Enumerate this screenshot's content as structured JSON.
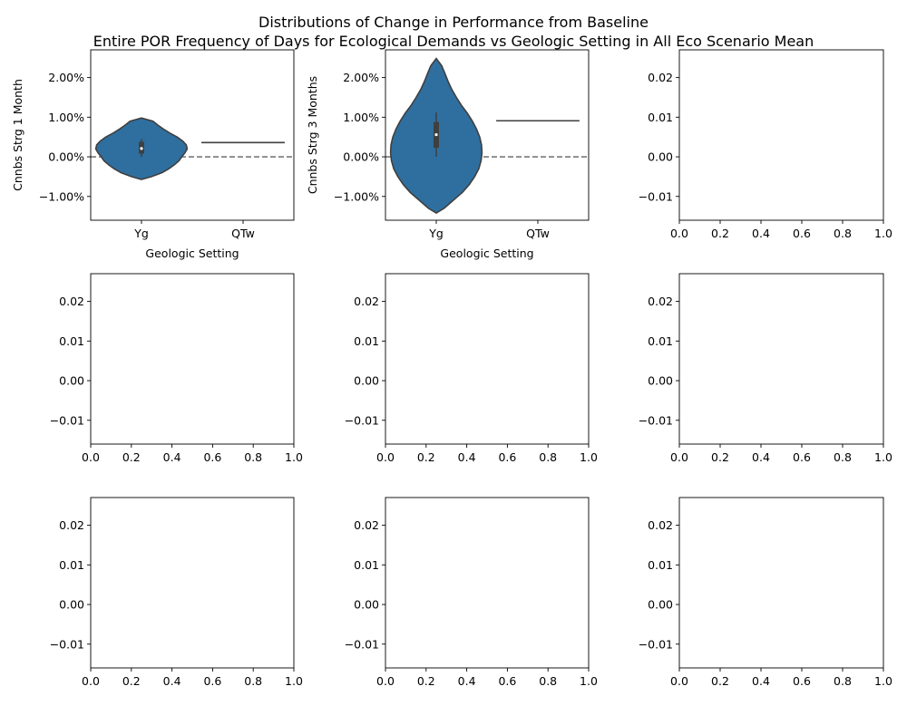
{
  "figure": {
    "title_line1": "Distributions of Change in Performance from Baseline",
    "title_line2": "Entire POR Frequency of Days for Ecological Demands vs Geologic Setting in All Eco Scenario Mean"
  },
  "colors": {
    "violin_fill": "#2f6f9f",
    "violin_edge": "#3f3f3f",
    "box": "#3f3f3f",
    "median": "#ffffff",
    "zero_line": "#7a7a7a",
    "axis": "#000000"
  },
  "chart_data": [
    {
      "type": "violin",
      "title": "",
      "xlabel": "Geologic Setting",
      "ylabel": "Cnnbs Strg 1 Month",
      "categories": [
        "Yg",
        "QTw"
      ],
      "ylim": [
        -0.016,
        0.027
      ],
      "yticks": [
        -0.01,
        0.0,
        0.01,
        0.02
      ],
      "ytick_labels": [
        "−1.00%",
        "0.00%",
        "1.00%",
        "2.00%"
      ],
      "reference_line": 0.0,
      "violins": [
        {
          "category": "Yg",
          "profile": [
            [
              -0.0057,
              0
            ],
            [
              -0.005,
              0.22
            ],
            [
              -0.004,
              0.45
            ],
            [
              -0.003,
              0.6
            ],
            [
              -0.002,
              0.72
            ],
            [
              -0.001,
              0.82
            ],
            [
              0.0,
              0.88
            ],
            [
              0.001,
              0.95
            ],
            [
              0.002,
              1.0
            ],
            [
              0.003,
              0.98
            ],
            [
              0.004,
              0.9
            ],
            [
              0.005,
              0.78
            ],
            [
              0.006,
              0.62
            ],
            [
              0.007,
              0.48
            ],
            [
              0.008,
              0.36
            ],
            [
              0.009,
              0.25
            ],
            [
              0.0098,
              0
            ]
          ],
          "max_half_width": 0.45,
          "q1": 0.0008,
          "median": 0.0021,
          "q3": 0.0038,
          "whisker_low": 0.0,
          "whisker_high": 0.0045
        },
        {
          "category": "QTw",
          "single_value": 0.0036
        }
      ]
    },
    {
      "type": "violin",
      "title": "",
      "xlabel": "Geologic Setting",
      "ylabel": "Cnnbs Strg 3 Months",
      "categories": [
        "Yg",
        "QTw"
      ],
      "ylim": [
        -0.016,
        0.027
      ],
      "yticks": [
        -0.01,
        0.0,
        0.01,
        0.02
      ],
      "ytick_labels": [
        "−1.00%",
        "0.00%",
        "1.00%",
        "2.00%"
      ],
      "reference_line": 0.0,
      "violins": [
        {
          "category": "Yg",
          "profile": [
            [
              -0.0142,
              0
            ],
            [
              -0.013,
              0.17
            ],
            [
              -0.011,
              0.37
            ],
            [
              -0.009,
              0.57
            ],
            [
              -0.007,
              0.72
            ],
            [
              -0.005,
              0.84
            ],
            [
              -0.003,
              0.93
            ],
            [
              -0.001,
              0.98
            ],
            [
              0.001,
              1.0
            ],
            [
              0.003,
              0.99
            ],
            [
              0.005,
              0.95
            ],
            [
              0.007,
              0.88
            ],
            [
              0.009,
              0.79
            ],
            [
              0.011,
              0.68
            ],
            [
              0.013,
              0.55
            ],
            [
              0.015,
              0.44
            ],
            [
              0.017,
              0.34
            ],
            [
              0.019,
              0.26
            ],
            [
              0.021,
              0.19
            ],
            [
              0.023,
              0.12
            ],
            [
              0.0248,
              0
            ]
          ],
          "max_half_width": 0.45,
          "q1": 0.0023,
          "median": 0.0056,
          "q3": 0.0088,
          "whisker_low": 0.0,
          "whisker_high": 0.0112
        },
        {
          "category": "QTw",
          "single_value": 0.0091
        }
      ]
    },
    {
      "type": "empty",
      "xlim": [
        0,
        1
      ],
      "ylim": [
        -0.016,
        0.027
      ],
      "xticks": [
        0.0,
        0.2,
        0.4,
        0.6,
        0.8,
        1.0
      ],
      "xtick_labels": [
        "0.0",
        "0.2",
        "0.4",
        "0.6",
        "0.8",
        "1.0"
      ],
      "yticks": [
        -0.01,
        0.0,
        0.01,
        0.02
      ],
      "ytick_labels": [
        "−0.01",
        "0.00",
        "0.01",
        "0.02"
      ]
    },
    {
      "type": "empty",
      "xlim": [
        0,
        1
      ],
      "ylim": [
        -0.016,
        0.027
      ],
      "xticks": [
        0.0,
        0.2,
        0.4,
        0.6,
        0.8,
        1.0
      ],
      "xtick_labels": [
        "0.0",
        "0.2",
        "0.4",
        "0.6",
        "0.8",
        "1.0"
      ],
      "yticks": [
        -0.01,
        0.0,
        0.01,
        0.02
      ],
      "ytick_labels": [
        "−0.01",
        "0.00",
        "0.01",
        "0.02"
      ]
    },
    {
      "type": "empty",
      "xlim": [
        0,
        1
      ],
      "ylim": [
        -0.016,
        0.027
      ],
      "xticks": [
        0.0,
        0.2,
        0.4,
        0.6,
        0.8,
        1.0
      ],
      "xtick_labels": [
        "0.0",
        "0.2",
        "0.4",
        "0.6",
        "0.8",
        "1.0"
      ],
      "yticks": [
        -0.01,
        0.0,
        0.01,
        0.02
      ],
      "ytick_labels": [
        "−0.01",
        "0.00",
        "0.01",
        "0.02"
      ]
    },
    {
      "type": "empty",
      "xlim": [
        0,
        1
      ],
      "ylim": [
        -0.016,
        0.027
      ],
      "xticks": [
        0.0,
        0.2,
        0.4,
        0.6,
        0.8,
        1.0
      ],
      "xtick_labels": [
        "0.0",
        "0.2",
        "0.4",
        "0.6",
        "0.8",
        "1.0"
      ],
      "yticks": [
        -0.01,
        0.0,
        0.01,
        0.02
      ],
      "ytick_labels": [
        "−0.01",
        "0.00",
        "0.01",
        "0.02"
      ]
    },
    {
      "type": "empty",
      "xlim": [
        0,
        1
      ],
      "ylim": [
        -0.016,
        0.027
      ],
      "xticks": [
        0.0,
        0.2,
        0.4,
        0.6,
        0.8,
        1.0
      ],
      "xtick_labels": [
        "0.0",
        "0.2",
        "0.4",
        "0.6",
        "0.8",
        "1.0"
      ],
      "yticks": [
        -0.01,
        0.0,
        0.01,
        0.02
      ],
      "ytick_labels": [
        "−0.01",
        "0.00",
        "0.01",
        "0.02"
      ]
    },
    {
      "type": "empty",
      "xlim": [
        0,
        1
      ],
      "ylim": [
        -0.016,
        0.027
      ],
      "xticks": [
        0.0,
        0.2,
        0.4,
        0.6,
        0.8,
        1.0
      ],
      "xtick_labels": [
        "0.0",
        "0.2",
        "0.4",
        "0.6",
        "0.8",
        "1.0"
      ],
      "yticks": [
        -0.01,
        0.0,
        0.01,
        0.02
      ],
      "ytick_labels": [
        "−0.01",
        "0.00",
        "0.01",
        "0.02"
      ]
    },
    {
      "type": "empty",
      "xlim": [
        0,
        1
      ],
      "ylim": [
        -0.016,
        0.027
      ],
      "xticks": [
        0.0,
        0.2,
        0.4,
        0.6,
        0.8,
        1.0
      ],
      "xtick_labels": [
        "0.0",
        "0.2",
        "0.4",
        "0.6",
        "0.8",
        "1.0"
      ],
      "yticks": [
        -0.01,
        0.0,
        0.01,
        0.02
      ],
      "ytick_labels": [
        "−0.01",
        "0.00",
        "0.01",
        "0.02"
      ]
    }
  ]
}
